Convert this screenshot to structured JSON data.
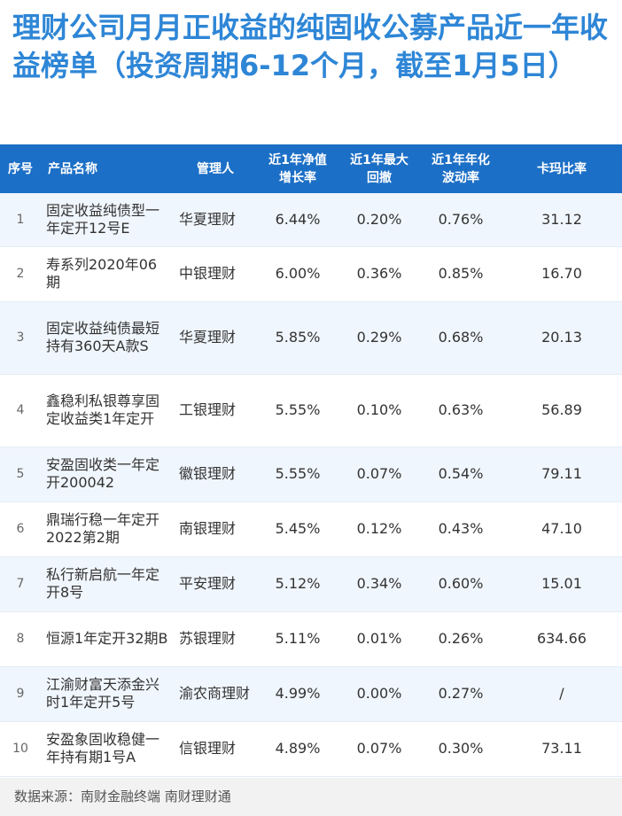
{
  "title": "理财公司月月正收益的纯固收公募产品近一年收益榜单（投资周期6-12个月，截至1月5日）",
  "headers": {
    "index": "序号",
    "name": "产品名称",
    "manager": "管理人",
    "growth": "近1年净值\n增长率",
    "drawdown": "近1年最大\n回撤",
    "volatility": "近1年年化\n波动率",
    "calmar": "卡玛比率"
  },
  "rows": [
    {
      "index": "1",
      "name": "固定收益纯债型一年定开12号E",
      "manager": "华夏理财",
      "growth": "6.44%",
      "drawdown": "0.20%",
      "volatility": "0.76%",
      "calmar": "31.12"
    },
    {
      "index": "2",
      "name": "寿系列2020年06期",
      "manager": "中银理财",
      "growth": "6.00%",
      "drawdown": "0.36%",
      "volatility": "0.85%",
      "calmar": "16.70"
    },
    {
      "index": "3",
      "name": "固定收益纯债最短持有360天A款S",
      "manager": "华夏理财",
      "growth": "5.85%",
      "drawdown": "0.29%",
      "volatility": "0.68%",
      "calmar": "20.13"
    },
    {
      "index": "4",
      "name": "鑫稳利私银尊享固定收益类1年定开",
      "manager": "工银理财",
      "growth": "5.55%",
      "drawdown": "0.10%",
      "volatility": "0.63%",
      "calmar": "56.89"
    },
    {
      "index": "5",
      "name": "安盈固收类一年定开200042",
      "manager": "徽银理财",
      "growth": "5.55%",
      "drawdown": "0.07%",
      "volatility": "0.54%",
      "calmar": "79.11"
    },
    {
      "index": "6",
      "name": "鼎瑞行稳一年定开2022第2期",
      "manager": "南银理财",
      "growth": "5.45%",
      "drawdown": "0.12%",
      "volatility": "0.43%",
      "calmar": "47.10"
    },
    {
      "index": "7",
      "name": "私行新启航一年定开8号",
      "manager": "平安理财",
      "growth": "5.12%",
      "drawdown": "0.34%",
      "volatility": "0.60%",
      "calmar": "15.01"
    },
    {
      "index": "8",
      "name": "恒源1年定开32期B",
      "manager": "苏银理财",
      "growth": "5.11%",
      "drawdown": "0.01%",
      "volatility": "0.26%",
      "calmar": "634.66"
    },
    {
      "index": "9",
      "name": "江渝财富天添金兴时1年定开5号",
      "manager": "渝农商理财",
      "growth": "4.99%",
      "drawdown": "0.00%",
      "volatility": "0.27%",
      "calmar": "/"
    },
    {
      "index": "10",
      "name": "安盈象固收稳健一年持有期1号A",
      "manager": "信银理财",
      "growth": "4.89%",
      "drawdown": "0.07%",
      "volatility": "0.30%",
      "calmar": "73.11"
    }
  ],
  "footer": "数据来源：南财金融终端 南财理财通",
  "colors": {
    "title": "#2e86d6",
    "header_bg": "#1c6fc6",
    "row_alt": "#f0f6fd"
  }
}
